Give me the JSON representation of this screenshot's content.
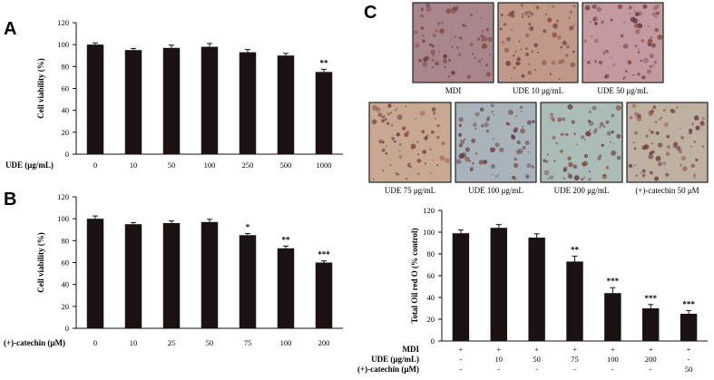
{
  "panels": {
    "a": "A",
    "b": "B",
    "c": "C"
  },
  "chart_data": [
    {
      "id": "A",
      "type": "bar",
      "ylabel": "Cell viability (%)",
      "xlabel": "UDE (μg/mL)",
      "categories": [
        "0",
        "10",
        "50",
        "100",
        "250",
        "500",
        "1000"
      ],
      "values": [
        100,
        95,
        97,
        98,
        93,
        90,
        75
      ],
      "errors": [
        1.5,
        1.5,
        2.5,
        3,
        2.5,
        2,
        2.5
      ],
      "significance": [
        "",
        "",
        "",
        "",
        "",
        "",
        "**"
      ],
      "ylim": [
        0,
        120
      ],
      "yticks": [
        "0",
        "20",
        "40",
        "60",
        "80",
        "100",
        "120"
      ]
    },
    {
      "id": "B",
      "type": "bar",
      "ylabel": "Cell viability (%)",
      "xlabel": "(+)-catechin (μM)",
      "categories": [
        "0",
        "10",
        "25",
        "50",
        "75",
        "100",
        "200"
      ],
      "values": [
        100,
        95,
        96,
        97,
        85,
        73,
        60
      ],
      "errors": [
        2.5,
        1.5,
        2,
        2.5,
        1.5,
        2,
        1.5
      ],
      "significance": [
        "",
        "",
        "",
        "",
        "*",
        "**",
        "***"
      ],
      "ylim": [
        0,
        120
      ],
      "yticks": [
        "0",
        "20",
        "40",
        "60",
        "80",
        "100",
        "120"
      ]
    },
    {
      "id": "C",
      "type": "bar",
      "ylabel": "Total Oil red O (% control)",
      "values": [
        99,
        104,
        95,
        73,
        44,
        30,
        25
      ],
      "errors": [
        3,
        3,
        3.5,
        5,
        5,
        3.5,
        3
      ],
      "significance": [
        "",
        "",
        "",
        "**",
        "***",
        "***",
        "***"
      ],
      "ylim": [
        0,
        120
      ],
      "yticks": [
        "0",
        "20",
        "40",
        "60",
        "80",
        "100",
        "120"
      ],
      "condition_rows": [
        {
          "label": "MDI",
          "values": [
            "+",
            "+",
            "+",
            "+",
            "+",
            "+",
            "+"
          ]
        },
        {
          "label": "UDE (μg/mL)",
          "values": [
            "-",
            "10",
            "50",
            "75",
            "100",
            "200",
            "-"
          ]
        },
        {
          "label": "(+)-catechin (μM)",
          "values": [
            "-",
            "-",
            "-",
            "-",
            "-",
            "-",
            "50"
          ]
        }
      ]
    }
  ],
  "micrographs": [
    {
      "caption": "MDI",
      "tint": "#a9868c"
    },
    {
      "caption": "UDE 10 μg/mL",
      "tint": "#c0998a"
    },
    {
      "caption": "UDE 50 μg/mL",
      "tint": "#c39aa0"
    },
    {
      "caption": "UDE 75 μg/mL",
      "tint": "#c9a891"
    },
    {
      "caption": "UDE 100 μg/mL",
      "tint": "#a8b4ba"
    },
    {
      "caption": "UDE 200 μg/mL",
      "tint": "#acbcb7"
    },
    {
      "caption": "(+)-catechin  50 μM",
      "tint": "#bfb1a2"
    }
  ]
}
